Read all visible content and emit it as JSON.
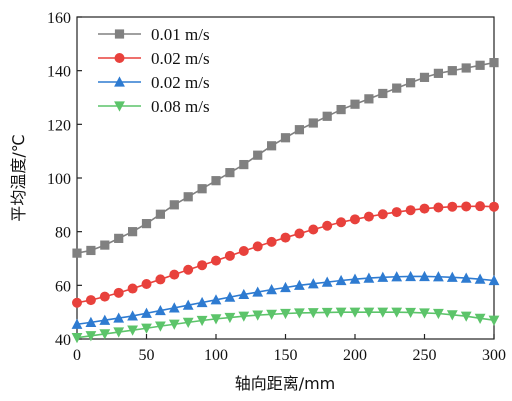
{
  "chart_data": {
    "type": "line",
    "xlabel": "轴向距离/mm",
    "ylabel": "平均温度/℃",
    "xlim": [
      0,
      300
    ],
    "ylim": [
      40,
      160
    ],
    "x_ticks": [
      0,
      50,
      100,
      150,
      200,
      250,
      300
    ],
    "y_ticks": [
      40,
      60,
      80,
      100,
      120,
      140,
      160
    ],
    "grid": false,
    "legend_position": "top-left",
    "x": [
      0,
      10,
      20,
      30,
      40,
      50,
      60,
      70,
      80,
      90,
      100,
      110,
      120,
      130,
      140,
      150,
      160,
      170,
      180,
      190,
      200,
      210,
      220,
      230,
      240,
      250,
      260,
      270,
      280,
      290,
      300
    ],
    "series": [
      {
        "name": "0.01 m/s",
        "color": "#808080",
        "marker": "square",
        "values": [
          72,
          73,
          75,
          77.5,
          80,
          83,
          86.5,
          90,
          93,
          96,
          99,
          102,
          105,
          108.5,
          112,
          115,
          118,
          120.5,
          123,
          125.5,
          127.5,
          129.5,
          131.5,
          133.5,
          135.5,
          137.5,
          139,
          140,
          141,
          142,
          143
        ]
      },
      {
        "name": "0.02 m/s",
        "color": "#e8413c",
        "marker": "circle",
        "values": [
          53.5,
          54.5,
          55.8,
          57.2,
          58.8,
          60.5,
          62.2,
          64,
          65.8,
          67.5,
          69.2,
          71,
          72.8,
          74.5,
          76.2,
          77.8,
          79.3,
          80.8,
          82.2,
          83.5,
          84.6,
          85.6,
          86.5,
          87.3,
          88,
          88.6,
          89,
          89.3,
          89.4,
          89.5,
          89.3
        ]
      },
      {
        "name": "0.02 m/s",
        "color": "#2e7bd1",
        "marker": "triangle-up",
        "values": [
          45.5,
          46.2,
          47,
          47.8,
          48.6,
          49.6,
          50.6,
          51.6,
          52.6,
          53.6,
          54.6,
          55.6,
          56.6,
          57.5,
          58.4,
          59.2,
          60,
          60.6,
          61.2,
          61.8,
          62.3,
          62.7,
          63,
          63.2,
          63.3,
          63.3,
          63.2,
          63,
          62.7,
          62.3,
          61.8
        ]
      },
      {
        "name": "0.08 m/s",
        "color": "#5cc46a",
        "marker": "triangle-down",
        "values": [
          40.5,
          41.2,
          41.9,
          42.6,
          43.3,
          44,
          44.8,
          45.5,
          46.2,
          46.9,
          47.5,
          48,
          48.5,
          48.9,
          49.2,
          49.5,
          49.7,
          49.8,
          49.9,
          50,
          50,
          50,
          50,
          50,
          49.9,
          49.7,
          49.5,
          49,
          48.5,
          47.7,
          47
        ]
      }
    ]
  }
}
